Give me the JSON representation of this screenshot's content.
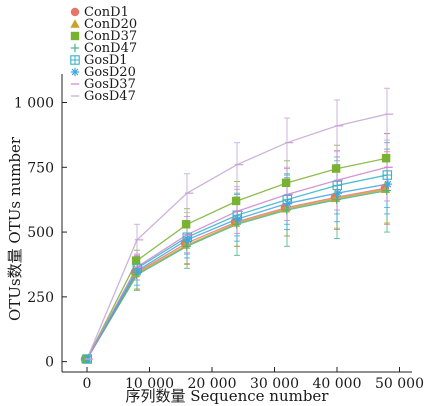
{
  "chart_data": {
    "type": "line",
    "xlabel": "序列数量 Sequence number",
    "ylabel": "OTUs数量 OTUs number",
    "xlim": [
      -4000,
      52000
    ],
    "ylim": [
      -40,
      1110
    ],
    "x_ticks": [
      0,
      10000,
      20000,
      30000,
      40000,
      50000
    ],
    "x_tick_labels": [
      "0",
      "10 000",
      "20 000",
      "30 000",
      "40 000",
      "50 000"
    ],
    "y_ticks": [
      0,
      250,
      500,
      750,
      1000
    ],
    "y_tick_labels": [
      "0",
      "250",
      "500",
      "750",
      "1 000"
    ],
    "x": [
      0,
      8000,
      16000,
      24000,
      32000,
      40000,
      48000
    ],
    "legend_position": "top-left",
    "grid": false,
    "error_bars": true,
    "series": [
      {
        "name": "ConD1",
        "color": "#e8746a",
        "marker": "circle",
        "values": [
          10,
          345,
          458,
          540,
          595,
          635,
          670
        ],
        "errors": [
          0,
          65,
          80,
          95,
          110,
          125,
          140
        ]
      },
      {
        "name": "ConD20",
        "color": "#c9a227",
        "marker": "triangle",
        "values": [
          10,
          340,
          450,
          535,
          590,
          630,
          665
        ],
        "errors": [
          0,
          60,
          75,
          90,
          105,
          115,
          130
        ]
      },
      {
        "name": "ConD37",
        "color": "#78b22e",
        "marker": "square",
        "values": [
          10,
          390,
          530,
          620,
          690,
          745,
          785
        ],
        "errors": [
          0,
          40,
          60,
          75,
          85,
          90,
          95
        ]
      },
      {
        "name": "ConD47",
        "color": "#47b28a",
        "marker": "plus",
        "values": [
          10,
          335,
          445,
          530,
          585,
          625,
          660
        ],
        "errors": [
          0,
          60,
          85,
          120,
          140,
          150,
          160
        ]
      },
      {
        "name": "GosD1",
        "color": "#35b3c7",
        "marker": "square-cross",
        "values": [
          10,
          360,
          480,
          565,
          625,
          680,
          720
        ],
        "errors": [
          0,
          45,
          65,
          80,
          95,
          110,
          125
        ]
      },
      {
        "name": "GosD20",
        "color": "#3ea6e0",
        "marker": "asterisk",
        "values": [
          10,
          350,
          470,
          550,
          610,
          650,
          685
        ],
        "errors": [
          0,
          55,
          70,
          85,
          100,
          110,
          115
        ]
      },
      {
        "name": "GosD37",
        "color": "#cf82cf",
        "marker": "line",
        "values": [
          10,
          365,
          490,
          580,
          645,
          700,
          750
        ],
        "errors": [
          0,
          50,
          70,
          85,
          100,
          115,
          130
        ]
      },
      {
        "name": "GosD47",
        "color": "#c6a4d6",
        "marker": "line",
        "values": [
          10,
          470,
          650,
          760,
          845,
          910,
          955
        ],
        "errors": [
          0,
          60,
          75,
          85,
          95,
          100,
          100
        ]
      }
    ]
  }
}
